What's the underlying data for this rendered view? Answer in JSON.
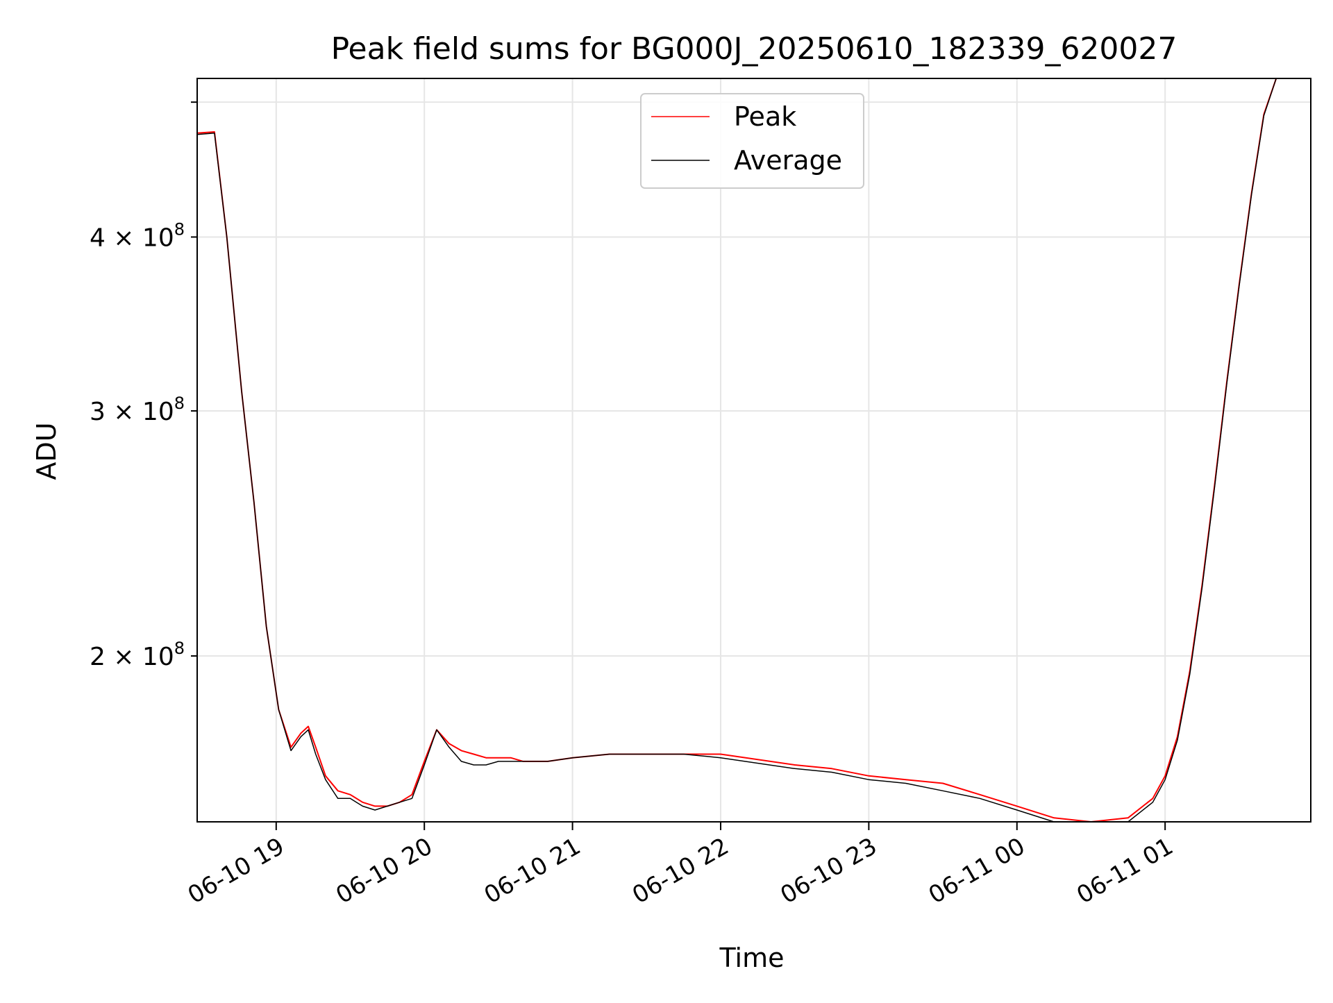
{
  "chart_data": {
    "type": "line",
    "title": "Peak field sums for BG000J_20250610_182339_620027",
    "xlabel": "Time",
    "ylabel": "ADU",
    "yscale": "log",
    "grid": true,
    "legend_position": "top-center",
    "x_range": [
      "2025-06-10 18:28",
      "2025-06-11 01:59"
    ],
    "ylim": [
      152000000,
      520000000
    ],
    "x_ticks": [
      "06-10 19",
      "06-10 20",
      "06-10 21",
      "06-10 22",
      "06-10 23",
      "06-11 00",
      "06-11 01"
    ],
    "y_ticks": [
      {
        "value": 200000000,
        "base": "2",
        "exp": "8"
      },
      {
        "value": 300000000,
        "base": "3",
        "exp": "8"
      },
      {
        "value": 400000000,
        "base": "4",
        "exp": "8"
      },
      {
        "value": 500000000,
        "base": "",
        "exp": ""
      }
    ],
    "x": [
      "2025-06-10 18:28",
      "2025-06-10 18:35",
      "2025-06-10 18:40",
      "2025-06-10 18:46",
      "2025-06-10 18:51",
      "2025-06-10 18:56",
      "2025-06-10 19:01",
      "2025-06-10 19:06",
      "2025-06-10 19:10",
      "2025-06-10 19:13",
      "2025-06-10 19:16",
      "2025-06-10 19:20",
      "2025-06-10 19:25",
      "2025-06-10 19:30",
      "2025-06-10 19:35",
      "2025-06-10 19:40",
      "2025-06-10 19:45",
      "2025-06-10 19:50",
      "2025-06-10 19:55",
      "2025-06-10 20:00",
      "2025-06-10 20:05",
      "2025-06-10 20:10",
      "2025-06-10 20:15",
      "2025-06-10 20:20",
      "2025-06-10 20:25",
      "2025-06-10 20:30",
      "2025-06-10 20:35",
      "2025-06-10 20:40",
      "2025-06-10 20:45",
      "2025-06-10 20:50",
      "2025-06-10 21:00",
      "2025-06-10 21:15",
      "2025-06-10 21:30",
      "2025-06-10 21:45",
      "2025-06-10 22:00",
      "2025-06-10 22:30",
      "2025-06-10 22:45",
      "2025-06-10 23:00",
      "2025-06-10 23:15",
      "2025-06-10 23:30",
      "2025-06-10 23:45",
      "2025-06-11 00:00",
      "2025-06-11 00:15",
      "2025-06-11 00:30",
      "2025-06-11 00:45",
      "2025-06-11 00:55",
      "2025-06-11 01:00",
      "2025-06-11 01:05",
      "2025-06-11 01:10",
      "2025-06-11 01:15",
      "2025-06-11 01:20",
      "2025-06-11 01:25",
      "2025-06-11 01:30",
      "2025-06-11 01:35",
      "2025-06-11 01:40",
      "2025-06-11 01:45",
      "2025-06-11 01:50",
      "2025-06-11 01:55",
      "2025-06-11 01:59"
    ],
    "series": [
      {
        "name": "Peak",
        "color": "#ff0000",
        "values": [
          475000000,
          476000000,
          400000000,
          310000000,
          258000000,
          210000000,
          183000000,
          172000000,
          176000000,
          178000000,
          172000000,
          164000000,
          160000000,
          159000000,
          157000000,
          156000000,
          156000000,
          157000000,
          159000000,
          168000000,
          177000000,
          173000000,
          171000000,
          170000000,
          169000000,
          169000000,
          169000000,
          168000000,
          168000000,
          168000000,
          169000000,
          170000000,
          170000000,
          170000000,
          170000000,
          167000000,
          166000000,
          164000000,
          163000000,
          162000000,
          159000000,
          156000000,
          153000000,
          152000000,
          153000000,
          158000000,
          164000000,
          175000000,
          195000000,
          225000000,
          265000000,
          315000000,
          370000000,
          430000000,
          490000000,
          520000000,
          520000000,
          520000000,
          520000000
        ]
      },
      {
        "name": "Average",
        "color": "#000000",
        "values": [
          474000000,
          475000000,
          400000000,
          310000000,
          258000000,
          210000000,
          183000000,
          171000000,
          175000000,
          177000000,
          170000000,
          163000000,
          158000000,
          158000000,
          156000000,
          155000000,
          156000000,
          157000000,
          158000000,
          167000000,
          177000000,
          172000000,
          168000000,
          167000000,
          167000000,
          168000000,
          168000000,
          168000000,
          168000000,
          168000000,
          169000000,
          170000000,
          170000000,
          170000000,
          169000000,
          166000000,
          165000000,
          163000000,
          162000000,
          160000000,
          158000000,
          155000000,
          152000000,
          151000000,
          152000000,
          157000000,
          163000000,
          174000000,
          194000000,
          224000000,
          264000000,
          314000000,
          369000000,
          429000000,
          489000000,
          520000000,
          520000000,
          520000000,
          520000000
        ]
      }
    ]
  }
}
